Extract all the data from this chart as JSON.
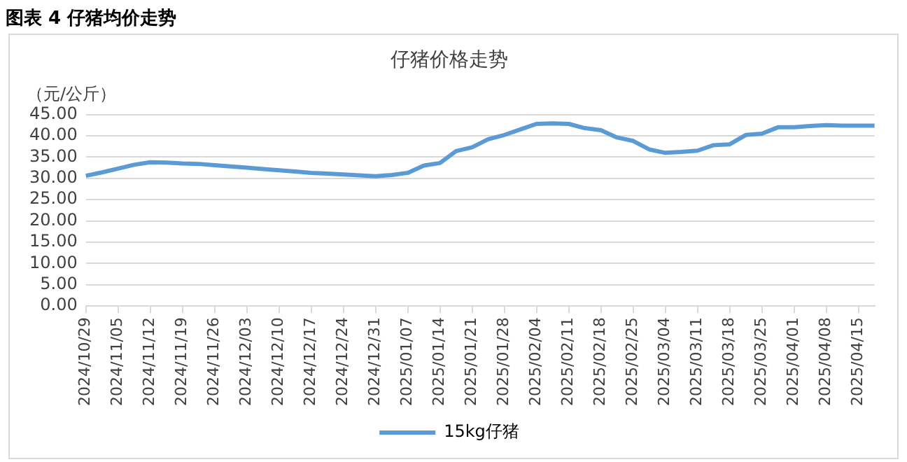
{
  "chart_data": {
    "type": "line",
    "title": "图表 4 仔猪均价走势",
    "subtitle": "仔猪价格走势",
    "ylabel": "（元/公斤）",
    "categories": [
      "2024/10/29",
      null,
      "2024/11/05",
      null,
      "2024/11/12",
      null,
      "2024/11/19",
      null,
      "2024/11/26",
      null,
      "2024/12/03",
      null,
      "2024/12/10",
      null,
      "2024/12/17",
      null,
      "2024/12/24",
      null,
      "2024/12/31",
      null,
      "2025/01/07",
      null,
      "2025/01/14",
      null,
      "2025/01/21",
      null,
      "2025/01/28",
      null,
      "2025/02/04",
      null,
      "2025/02/11",
      null,
      "2025/02/18",
      null,
      "2025/02/25",
      null,
      "2025/03/04",
      null,
      "2025/03/11",
      null,
      "2025/03/18",
      null,
      "2025/03/25",
      null,
      "2025/04/01",
      null,
      "2025/04/08",
      null,
      "2025/04/15",
      null
    ],
    "series": [
      {
        "name": "15kg仔猪",
        "color": "#5b9bd5",
        "values": [
          30.6,
          31.4,
          32.3,
          33.2,
          33.8,
          33.7,
          33.5,
          33.4,
          33.1,
          32.8,
          32.5,
          32.2,
          31.9,
          31.6,
          31.3,
          31.1,
          30.9,
          30.7,
          30.5,
          30.8,
          31.3,
          33.0,
          33.6,
          36.4,
          37.3,
          39.2,
          40.2,
          41.5,
          42.8,
          42.9,
          42.8,
          41.8,
          41.3,
          39.6,
          38.8,
          36.8,
          36.0,
          36.2,
          36.5,
          37.8,
          38.0,
          40.2,
          40.5,
          42.0,
          42.0,
          42.3,
          42.5,
          42.4,
          42.4,
          42.4
        ]
      }
    ],
    "ylim": [
      0,
      45
    ],
    "yticks": [
      {
        "value": 0,
        "label": "0.00"
      },
      {
        "value": 5,
        "label": "5.00"
      },
      {
        "value": 10,
        "label": "10.00"
      },
      {
        "value": 15,
        "label": "15.00"
      },
      {
        "value": 20,
        "label": "20.00"
      },
      {
        "value": 25,
        "label": "25.00"
      },
      {
        "value": 30,
        "label": "30.00"
      },
      {
        "value": 35,
        "label": "35.00"
      },
      {
        "value": 40,
        "label": "40.00"
      },
      {
        "value": 45,
        "label": "45.00"
      }
    ],
    "grid": "y",
    "legend": "bottom",
    "marker": "none",
    "line_style": "solid"
  }
}
